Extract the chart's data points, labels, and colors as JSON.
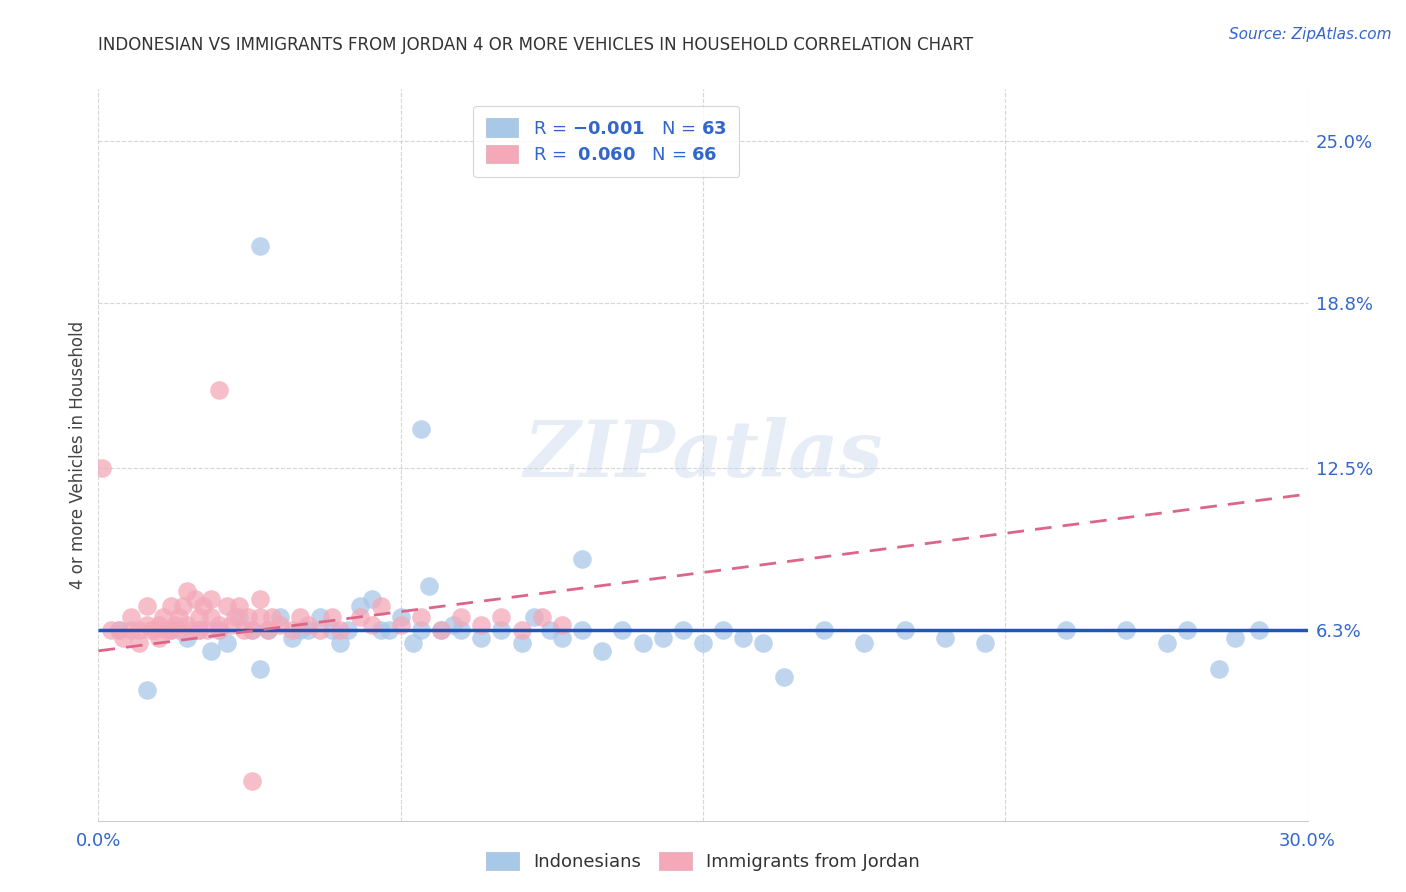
{
  "title": "INDONESIAN VS IMMIGRANTS FROM JORDAN 4 OR MORE VEHICLES IN HOUSEHOLD CORRELATION CHART",
  "source": "Source: ZipAtlas.com",
  "ylabel": "4 or more Vehicles in Household",
  "xlim": [
    0.0,
    0.3
  ],
  "ylim": [
    -0.01,
    0.27
  ],
  "ytick_right_labels": [
    "6.3%",
    "12.5%",
    "18.8%",
    "25.0%"
  ],
  "ytick_right_values": [
    0.063,
    0.125,
    0.188,
    0.25
  ],
  "legend_n_blue": "63",
  "legend_r_pink": "0.060",
  "legend_n_pink": "66",
  "blue_color": "#a8c8e8",
  "pink_color": "#f4a8b8",
  "blue_line_color": "#2255bb",
  "pink_line_color": "#dd6688",
  "watermark": "ZIPatlas",
  "background_color": "#ffffff",
  "grid_color": "#cccccc",
  "blue_x": [
    0.005,
    0.012,
    0.018,
    0.022,
    0.025,
    0.028,
    0.03,
    0.032,
    0.035,
    0.038,
    0.04,
    0.042,
    0.045,
    0.048,
    0.05,
    0.052,
    0.055,
    0.058,
    0.06,
    0.062,
    0.065,
    0.068,
    0.07,
    0.072,
    0.075,
    0.078,
    0.08,
    0.082,
    0.085,
    0.088,
    0.09,
    0.095,
    0.1,
    0.105,
    0.108,
    0.112,
    0.115,
    0.12,
    0.125,
    0.13,
    0.135,
    0.14,
    0.145,
    0.15,
    0.155,
    0.16,
    0.165,
    0.17,
    0.18,
    0.19,
    0.2,
    0.21,
    0.22,
    0.24,
    0.255,
    0.265,
    0.27,
    0.278,
    0.282,
    0.288,
    0.04,
    0.08,
    0.12
  ],
  "blue_y": [
    0.063,
    0.04,
    0.063,
    0.06,
    0.063,
    0.055,
    0.063,
    0.058,
    0.068,
    0.063,
    0.048,
    0.063,
    0.068,
    0.06,
    0.063,
    0.063,
    0.068,
    0.063,
    0.058,
    0.063,
    0.072,
    0.075,
    0.063,
    0.063,
    0.068,
    0.058,
    0.063,
    0.08,
    0.063,
    0.065,
    0.063,
    0.06,
    0.063,
    0.058,
    0.068,
    0.063,
    0.06,
    0.063,
    0.055,
    0.063,
    0.058,
    0.06,
    0.063,
    0.058,
    0.063,
    0.06,
    0.058,
    0.045,
    0.063,
    0.058,
    0.063,
    0.06,
    0.058,
    0.063,
    0.063,
    0.058,
    0.063,
    0.048,
    0.06,
    0.063,
    0.21,
    0.14,
    0.09
  ],
  "pink_x": [
    0.001,
    0.003,
    0.005,
    0.006,
    0.008,
    0.008,
    0.01,
    0.01,
    0.012,
    0.012,
    0.013,
    0.014,
    0.015,
    0.015,
    0.016,
    0.017,
    0.018,
    0.018,
    0.019,
    0.02,
    0.02,
    0.021,
    0.022,
    0.022,
    0.023,
    0.024,
    0.025,
    0.025,
    0.026,
    0.027,
    0.028,
    0.028,
    0.03,
    0.03,
    0.032,
    0.033,
    0.034,
    0.035,
    0.036,
    0.037,
    0.038,
    0.04,
    0.04,
    0.042,
    0.043,
    0.045,
    0.048,
    0.05,
    0.052,
    0.055,
    0.058,
    0.06,
    0.065,
    0.068,
    0.07,
    0.075,
    0.08,
    0.085,
    0.09,
    0.095,
    0.1,
    0.105,
    0.11,
    0.115,
    0.03,
    0.038
  ],
  "pink_y": [
    0.125,
    0.063,
    0.063,
    0.06,
    0.063,
    0.068,
    0.063,
    0.058,
    0.065,
    0.072,
    0.063,
    0.063,
    0.065,
    0.06,
    0.068,
    0.063,
    0.072,
    0.063,
    0.065,
    0.063,
    0.068,
    0.072,
    0.065,
    0.078,
    0.063,
    0.075,
    0.068,
    0.063,
    0.072,
    0.063,
    0.068,
    0.075,
    0.065,
    0.063,
    0.072,
    0.065,
    0.068,
    0.072,
    0.063,
    0.068,
    0.063,
    0.075,
    0.068,
    0.063,
    0.068,
    0.065,
    0.063,
    0.068,
    0.065,
    0.063,
    0.068,
    0.063,
    0.068,
    0.065,
    0.072,
    0.065,
    0.068,
    0.063,
    0.068,
    0.065,
    0.068,
    0.063,
    0.068,
    0.065,
    0.155,
    0.005
  ],
  "blue_line_x": [
    0.0,
    0.3
  ],
  "blue_line_y": [
    0.063,
    0.063
  ],
  "pink_line_x": [
    0.0,
    0.3
  ],
  "pink_line_y": [
    0.055,
    0.115
  ]
}
